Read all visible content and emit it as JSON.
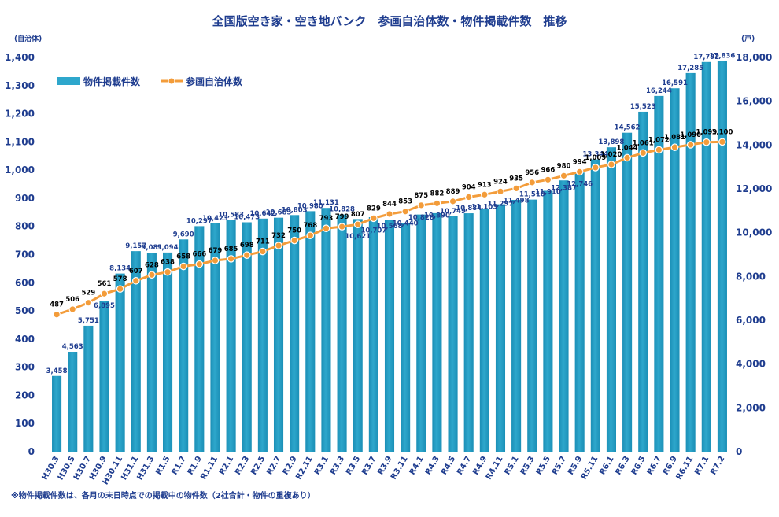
{
  "chart_data": {
    "type": "bar",
    "title": "全国版空き家・空き地バンク　参画自治体数・物件掲載件数　推移",
    "categories": [
      "H30.3",
      "H30.5",
      "H30.7",
      "H30.9",
      "H30.11",
      "H31.1",
      "H31.3",
      "R1.5",
      "R1.7",
      "R1.9",
      "R1.11",
      "R2.1",
      "R2.3",
      "R2.5",
      "R2.7",
      "R2.9",
      "R2.11",
      "R3.1",
      "R3.3",
      "R3.5",
      "R3.7",
      "R3.9",
      "R3.11",
      "R4.1",
      "R4.3",
      "R4.5",
      "R4.7",
      "R4.9",
      "R4.11",
      "R5.1",
      "R5.3",
      "R5.5",
      "R5.7",
      "R5.9",
      "R5.11",
      "R6.1",
      "R6.3",
      "R6.5",
      "R6.7",
      "R6.9",
      "R6.11",
      "R7.1",
      "R7.2"
    ],
    "series": [
      {
        "name": "物件掲載件数",
        "type": "bar",
        "axis": "right",
        "color": "#2ea7cc",
        "values": [
          3458,
          4563,
          5751,
          6895,
          8134,
          9157,
          9081,
          9094,
          9690,
          10297,
          10423,
          10583,
          10473,
          10642,
          10683,
          10803,
          10980,
          11131,
          10828,
          10621,
          10707,
          10568,
          10440,
          10828,
          10890,
          10749,
          10884,
          11103,
          11297,
          11498,
          11510,
          11910,
          12387,
          12746,
          13344,
          13898,
          14562,
          15523,
          16244,
          16591,
          17285,
          17792,
          17836
        ],
        "labels": [
          "3,458",
          "4,563",
          "5,751",
          "6,895",
          "8,134",
          "9,157",
          "9,081",
          "9,094",
          "9,690",
          "10,297",
          "10,423",
          "10,583",
          "10,473",
          "10,642",
          "10,683",
          "10,803",
          "10,980",
          "11,131",
          "10,828",
          "10,621",
          "10,707",
          "10,568",
          "10,440",
          "10,828",
          "10,890",
          "10,749",
          "10,884",
          "11,103",
          "11,297",
          "11,498",
          "11,510",
          "11,910",
          "12,387",
          "12,746",
          "13,344",
          "13,898",
          "14,562",
          "15,523",
          "16,244",
          "16,591",
          "17,285",
          "17,792",
          "17,836"
        ]
      },
      {
        "name": "参画自治体数",
        "type": "line",
        "axis": "left",
        "color": "#f39c3a",
        "values": [
          487,
          506,
          529,
          561,
          578,
          607,
          628,
          638,
          658,
          666,
          679,
          685,
          698,
          711,
          732,
          750,
          768,
          793,
          799,
          807,
          829,
          844,
          853,
          875,
          882,
          889,
          904,
          913,
          924,
          935,
          956,
          966,
          980,
          994,
          1009,
          1020,
          1044,
          1061,
          1072,
          1081,
          1090,
          1099,
          1100
        ],
        "labels": [
          "487",
          "506",
          "529",
          "561",
          "578",
          "607",
          "628",
          "638",
          "658",
          "666",
          "679",
          "685",
          "698",
          "711",
          "732",
          "750",
          "768",
          "793",
          "799",
          "807",
          "829",
          "844",
          "853",
          "875",
          "882",
          "889",
          "904",
          "913",
          "924",
          "935",
          "956",
          "966",
          "980",
          "994",
          "1,009",
          "1,020",
          "1,044",
          "1,061",
          "1,072",
          "1,081",
          "1,090",
          "1,099",
          "1,100"
        ]
      }
    ],
    "left_axis": {
      "unit": "(自治体)",
      "ylim": [
        0,
        1400
      ],
      "ticks": [
        0,
        100,
        200,
        300,
        400,
        500,
        600,
        700,
        800,
        900,
        1000,
        1100,
        1200,
        1300,
        1400
      ],
      "tick_labels": [
        "0",
        "100",
        "200",
        "300",
        "400",
        "500",
        "600",
        "700",
        "800",
        "900",
        "1,000",
        "1,100",
        "1,200",
        "1,300",
        "1,400"
      ]
    },
    "right_axis": {
      "unit": "(戸)",
      "ylim": [
        0,
        18000
      ],
      "ticks": [
        0,
        2000,
        4000,
        6000,
        8000,
        10000,
        12000,
        14000,
        16000,
        18000
      ],
      "tick_labels": [
        "0",
        "2,000",
        "4,000",
        "6,000",
        "8,000",
        "10,000",
        "12,000",
        "14,000",
        "16,000",
        "18,000"
      ]
    },
    "grid": false,
    "legend": "top-left",
    "footnote": "※物件掲載件数は、各月の末日時点での掲載中の物件数（2社合計・物件の重複あり）"
  }
}
